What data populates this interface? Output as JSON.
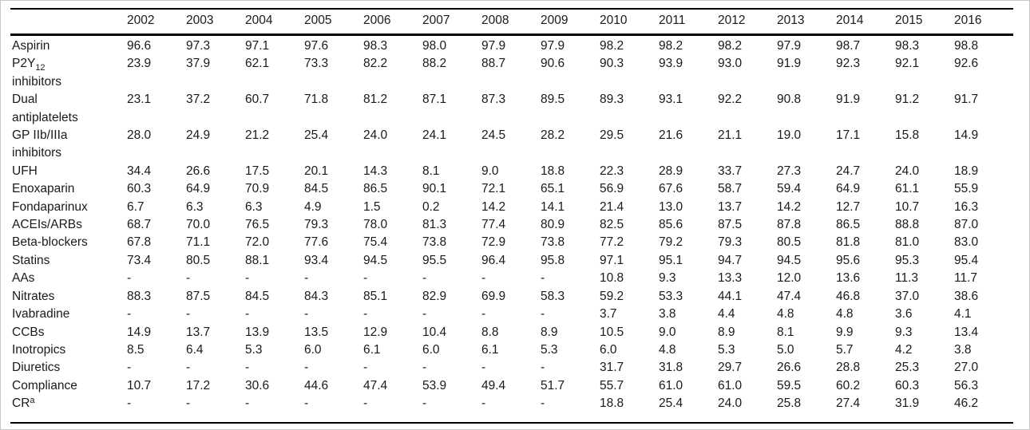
{
  "colors": {
    "background": "#ffffff",
    "text": "#1a1a1a",
    "table_rules": "#000000",
    "frame_border": "#c8c8c8"
  },
  "table": {
    "columns": [
      "2002",
      "2003",
      "2004",
      "2005",
      "2006",
      "2007",
      "2008",
      "2009",
      "2010",
      "2011",
      "2012",
      "2013",
      "2014",
      "2015",
      "2016"
    ],
    "rows": [
      {
        "label": [
          {
            "t": "Aspirin"
          }
        ],
        "values": [
          "96.6",
          "97.3",
          "97.1",
          "97.6",
          "98.3",
          "98.0",
          "97.9",
          "97.9",
          "98.2",
          "98.2",
          "98.2",
          "97.9",
          "98.7",
          "98.3",
          "98.8"
        ]
      },
      {
        "label": [
          {
            "t": "P2Y"
          },
          {
            "t": "12",
            "s": "sub"
          },
          {
            "t": " inhibitors"
          }
        ],
        "values": [
          "23.9",
          "37.9",
          "62.1",
          "73.3",
          "82.2",
          "88.2",
          "88.7",
          "90.6",
          "90.3",
          "93.9",
          "93.0",
          "91.9",
          "92.3",
          "92.1",
          "92.6"
        ]
      },
      {
        "label": [
          {
            "t": "Dual antiplatelets"
          }
        ],
        "values": [
          "23.1",
          "37.2",
          "60.7",
          "71.8",
          "81.2",
          "87.1",
          "87.3",
          "89.5",
          "89.3",
          "93.1",
          "92.2",
          "90.8",
          "91.9",
          "91.2",
          "91.7"
        ]
      },
      {
        "label": [
          {
            "t": "GP IIb/IIIa inhibitors"
          }
        ],
        "values": [
          "28.0",
          "24.9",
          "21.2",
          "25.4",
          "24.0",
          "24.1",
          "24.5",
          "28.2",
          "29.5",
          "21.6",
          "21.1",
          "19.0",
          "17.1",
          "15.8",
          "14.9"
        ]
      },
      {
        "label": [
          {
            "t": "UFH"
          }
        ],
        "values": [
          "34.4",
          "26.6",
          "17.5",
          "20.1",
          "14.3",
          "8.1",
          "9.0",
          "18.8",
          "22.3",
          "28.9",
          "33.7",
          "27.3",
          "24.7",
          "24.0",
          "18.9"
        ]
      },
      {
        "label": [
          {
            "t": "Enoxaparin"
          }
        ],
        "values": [
          "60.3",
          "64.9",
          "70.9",
          "84.5",
          "86.5",
          "90.1",
          "72.1",
          "65.1",
          "56.9",
          "67.6",
          "58.7",
          "59.4",
          "64.9",
          "61.1",
          "55.9"
        ]
      },
      {
        "label": [
          {
            "t": "Fondaparinux"
          }
        ],
        "values": [
          "6.7",
          "6.3",
          "6.3",
          "4.9",
          "1.5",
          "0.2",
          "14.2",
          "14.1",
          "21.4",
          "13.0",
          "13.7",
          "14.2",
          "12.7",
          "10.7",
          "16.3"
        ]
      },
      {
        "label": [
          {
            "t": "ACEIs/ARBs"
          }
        ],
        "values": [
          "68.7",
          "70.0",
          "76.5",
          "79.3",
          "78.0",
          "81.3",
          "77.4",
          "80.9",
          "82.5",
          "85.6",
          "87.5",
          "87.8",
          "86.5",
          "88.8",
          "87.0"
        ]
      },
      {
        "label": [
          {
            "t": "Beta-blockers"
          }
        ],
        "values": [
          "67.8",
          "71.1",
          "72.0",
          "77.6",
          "75.4",
          "73.8",
          "72.9",
          "73.8",
          "77.2",
          "79.2",
          "79.3",
          "80.5",
          "81.8",
          "81.0",
          "83.0"
        ]
      },
      {
        "label": [
          {
            "t": "Statins"
          }
        ],
        "values": [
          "73.4",
          "80.5",
          "88.1",
          "93.4",
          "94.5",
          "95.5",
          "96.4",
          "95.8",
          "97.1",
          "95.1",
          "94.7",
          "94.5",
          "95.6",
          "95.3",
          "95.4"
        ]
      },
      {
        "label": [
          {
            "t": "AAs"
          }
        ],
        "values": [
          "-",
          "-",
          "-",
          "-",
          "-",
          "-",
          "-",
          "-",
          "10.8",
          "9.3",
          "13.3",
          "12.0",
          "13.6",
          "11.3",
          "11.7"
        ]
      },
      {
        "label": [
          {
            "t": "Nitrates"
          }
        ],
        "values": [
          "88.3",
          "87.5",
          "84.5",
          "84.3",
          "85.1",
          "82.9",
          "69.9",
          "58.3",
          "59.2",
          "53.3",
          "44.1",
          "47.4",
          "46.8",
          "37.0",
          "38.6"
        ]
      },
      {
        "label": [
          {
            "t": "Ivabradine"
          }
        ],
        "values": [
          "-",
          "-",
          "-",
          "-",
          "-",
          "-",
          "-",
          "-",
          "3.7",
          "3.8",
          "4.4",
          "4.8",
          "4.8",
          "3.6",
          "4.1"
        ]
      },
      {
        "label": [
          {
            "t": "CCBs"
          }
        ],
        "values": [
          "14.9",
          "13.7",
          "13.9",
          "13.5",
          "12.9",
          "10.4",
          "8.8",
          "8.9",
          "10.5",
          "9.0",
          "8.9",
          "8.1",
          "9.9",
          "9.3",
          "13.4"
        ]
      },
      {
        "label": [
          {
            "t": "Inotropics"
          }
        ],
        "values": [
          "8.5",
          "6.4",
          "5.3",
          "6.0",
          "6.1",
          "6.0",
          "6.1",
          "5.3",
          "6.0",
          "4.8",
          "5.3",
          "5.0",
          "5.7",
          "4.2",
          "3.8"
        ]
      },
      {
        "label": [
          {
            "t": "Diuretics"
          }
        ],
        "values": [
          "-",
          "-",
          "-",
          "-",
          "-",
          "-",
          "-",
          "-",
          "31.7",
          "31.8",
          "29.7",
          "26.6",
          "28.8",
          "25.3",
          "27.0"
        ]
      },
      {
        "label": [
          {
            "t": "Compliance"
          }
        ],
        "values": [
          "10.7",
          "17.2",
          "30.6",
          "44.6",
          "47.4",
          "53.9",
          "49.4",
          "51.7",
          "55.7",
          "61.0",
          "61.0",
          "59.5",
          "60.2",
          "60.3",
          "56.3"
        ]
      },
      {
        "label": [
          {
            "t": "CR"
          },
          {
            "t": "a",
            "s": "sup"
          }
        ],
        "values": [
          "-",
          "-",
          "-",
          "-",
          "-",
          "-",
          "-",
          "-",
          "18.8",
          "25.4",
          "24.0",
          "25.8",
          "27.4",
          "31.9",
          "46.2"
        ]
      }
    ]
  }
}
